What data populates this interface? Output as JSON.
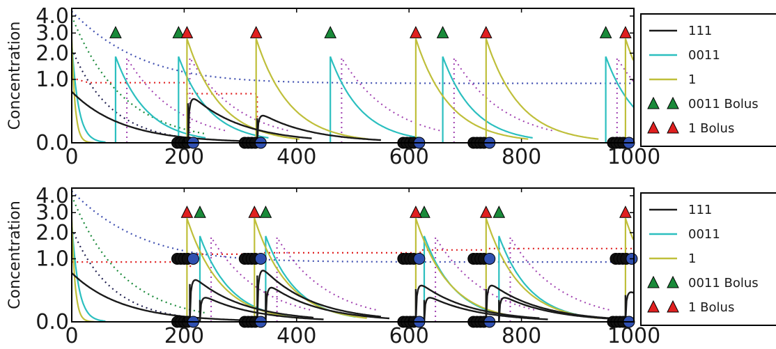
{
  "chart_data": [
    {
      "type": "line",
      "title": "",
      "xlabel": "",
      "ylabel": "Concentration",
      "xlim": [
        0,
        1000
      ],
      "ylim": [
        0.0,
        4.5
      ],
      "y_scale": "sqrt",
      "x_ticks": [
        "0",
        "200",
        "400",
        "600",
        "800",
        "1000"
      ],
      "y_ticks": [
        "0.0",
        "1.0",
        "2.0",
        "3.0",
        "4.0"
      ],
      "grid": false,
      "legend_placement": "outside-right",
      "legend": [
        "111",
        "0011",
        "1",
        "0011 Bolus",
        "1 Bolus"
      ],
      "colors": {
        "s111": "#1a1a1a",
        "s0011": "#2bbfbf",
        "s1": "#bfbf3a",
        "bolus_0011": "#1a8a3a",
        "bolus_1": "#e02020",
        "dot_blue": "#3f4fb0",
        "dot_red": "#e02020",
        "dot_green": "#1a8a3a",
        "dot_purple": "#a040b0",
        "dot_navy": "#202050",
        "marker_black": "#111111",
        "marker_blue": "#3050b0"
      },
      "bolus_0011_times": [
        78,
        190,
        460,
        660,
        950
      ],
      "bolus_1_times": [
        205,
        328,
        612,
        737,
        985
      ],
      "bolus_marker_y": 3.0,
      "series_111_pulses": [
        [
          207,
          0.65
        ],
        [
          330,
          0.25
        ]
      ],
      "series_111_initial": 0.65,
      "blue_dotted_start": 4.3,
      "blue_dotted_plateau": 0.88,
      "red_dotted_level": 0.9,
      "red_dotted_step": [
        [
          205,
          0.6
        ],
        [
          330,
          0.0
        ]
      ],
      "circle_markers": [
        [
          210,
          0.0
        ],
        [
          330,
          0.0
        ],
        [
          612,
          0.0
        ],
        [
          737,
          0.0
        ],
        [
          985,
          0.0
        ]
      ],
      "circle_marker_y": 0.0
    },
    {
      "type": "line",
      "title": "",
      "xlabel": "",
      "ylabel": "Concentration",
      "xlim": [
        0,
        1000
      ],
      "ylim": [
        0.0,
        4.5
      ],
      "y_scale": "sqrt",
      "x_ticks": [
        "0",
        "200",
        "400",
        "600",
        "800",
        "1000"
      ],
      "y_ticks": [
        "0.0",
        "1.0",
        "2.0",
        "3.0",
        "4.0"
      ],
      "grid": false,
      "legend_placement": "outside-right",
      "legend": [
        "111",
        "0011",
        "1",
        "0011 Bolus",
        "1 Bolus"
      ],
      "bolus_0011_times": [
        228,
        345,
        627,
        760
      ],
      "bolus_1_times": [
        205,
        325,
        612,
        737,
        985
      ],
      "bolus_marker_y": 3.0,
      "series_111_pulses": [
        [
          210,
          0.6
        ],
        [
          228,
          0.2
        ],
        [
          330,
          0.9
        ],
        [
          345,
          0.4
        ],
        [
          612,
          0.45
        ],
        [
          627,
          0.2
        ],
        [
          737,
          0.45
        ],
        [
          760,
          0.2
        ],
        [
          985,
          0.3
        ]
      ],
      "series_111_initial": 0.6,
      "blue_dotted_start": 4.3,
      "blue_dotted_plateau": 0.9,
      "red_dotted_levels": [
        [
          0,
          0.9
        ],
        [
          205,
          0.78
        ],
        [
          215,
          1.15
        ],
        [
          340,
          1.2
        ],
        [
          620,
          1.3
        ],
        [
          740,
          1.35
        ],
        [
          1000,
          1.3
        ]
      ],
      "circle_markers": [
        [
          210,
          1.0
        ],
        [
          330,
          1.0
        ],
        [
          612,
          1.0
        ],
        [
          737,
          1.0
        ],
        [
          990,
          1.0
        ],
        [
          210,
          0.0
        ],
        [
          330,
          0.0
        ],
        [
          612,
          0.0
        ],
        [
          737,
          0.0
        ],
        [
          985,
          0.0
        ]
      ]
    }
  ]
}
